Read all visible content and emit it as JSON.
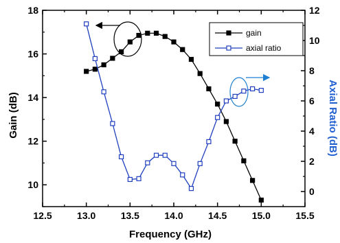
{
  "chart_data": {
    "type": "line",
    "xlabel": "Frequency (GHz)",
    "ylabel_left": "Gain (dB)",
    "ylabel_right": "Axial Ratio (dB)",
    "xlim": [
      12.5,
      15.5
    ],
    "ylim_left": [
      9,
      18
    ],
    "ylim_right": [
      -1,
      12
    ],
    "x_ticks": [
      "12.5",
      "13.0",
      "13.5",
      "14.0",
      "14.5",
      "15.0",
      "15.5"
    ],
    "y_left_ticks": [
      "10",
      "12",
      "14",
      "16",
      "18"
    ],
    "y_right_ticks": [
      "0",
      "2",
      "4",
      "6",
      "8",
      "10",
      "12"
    ],
    "grid": false,
    "legend_position": "top-right",
    "series": [
      {
        "name": "gain",
        "axis": "left",
        "color": "#000000",
        "marker": "filled-square",
        "x": [
          13.0,
          13.1,
          13.2,
          13.3,
          13.4,
          13.5,
          13.6,
          13.7,
          13.8,
          13.9,
          14.0,
          14.1,
          14.2,
          14.3,
          14.4,
          14.5,
          14.6,
          14.7,
          14.8,
          14.9,
          15.0
        ],
        "y": [
          15.2,
          15.3,
          15.5,
          15.8,
          16.1,
          16.55,
          16.85,
          16.95,
          16.95,
          16.8,
          16.55,
          16.2,
          15.75,
          15.1,
          14.4,
          13.7,
          12.9,
          12.0,
          11.1,
          10.2,
          9.3
        ]
      },
      {
        "name": "axial ratio",
        "axis": "right",
        "color": "#1f3fbf",
        "marker": "open-square",
        "x": [
          13.0,
          13.1,
          13.2,
          13.3,
          13.4,
          13.5,
          13.6,
          13.7,
          13.8,
          13.9,
          14.0,
          14.1,
          14.2,
          14.3,
          14.4,
          14.5,
          14.6,
          14.7,
          14.8,
          14.9,
          15.0
        ],
        "y": [
          11.1,
          8.8,
          6.6,
          4.5,
          2.3,
          0.8,
          0.85,
          1.9,
          2.4,
          2.4,
          1.85,
          1.1,
          0.2,
          1.85,
          3.3,
          4.9,
          6.0,
          6.3,
          6.65,
          6.8,
          6.7
        ]
      }
    ]
  }
}
